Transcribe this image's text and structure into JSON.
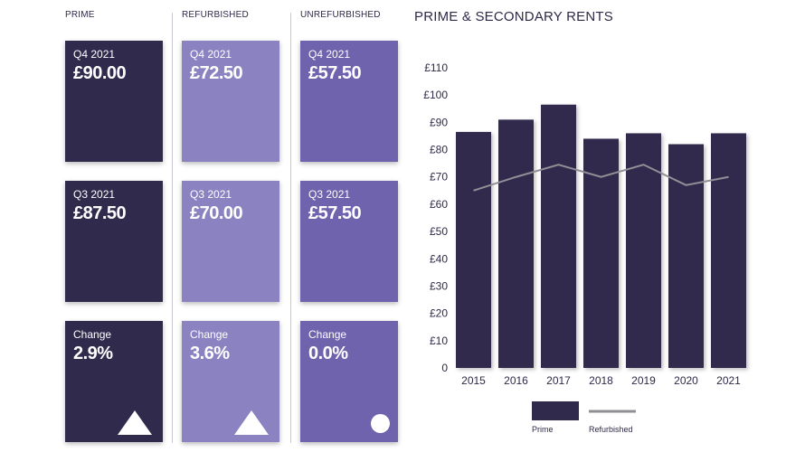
{
  "columns": {
    "prime": {
      "heading": "PRIME",
      "cards": [
        {
          "label": "Q4 2021",
          "value": "£90.00"
        },
        {
          "label": "Q3 2021",
          "value": "£87.50"
        },
        {
          "label": "Change",
          "value": "2.9%",
          "indicator": "up-triangle-icon"
        }
      ]
    },
    "refurbished": {
      "heading": "REFURBISHED",
      "cards": [
        {
          "label": "Q4 2021",
          "value": "£72.50"
        },
        {
          "label": "Q3 2021",
          "value": "£70.00"
        },
        {
          "label": "Change",
          "value": "3.6%",
          "indicator": "up-triangle-icon"
        }
      ]
    },
    "unrefurbished": {
      "heading": "UNREFURBISHED",
      "cards": [
        {
          "label": "Q4 2021",
          "value": "£57.50"
        },
        {
          "label": "Q3 2021",
          "value": "£57.50"
        },
        {
          "label": "Change",
          "value": "0.0%",
          "indicator": "circle-icon"
        }
      ]
    }
  },
  "colors": {
    "prime": "#302a4d",
    "refurbished": "#8a82c1",
    "unrefurbished": "#6f63ad",
    "line": "#8f8f95"
  },
  "chart_data": {
    "type": "bar",
    "title": "PRIME & SECONDARY RENTS",
    "categories": [
      "2015",
      "2016",
      "2017",
      "2018",
      "2019",
      "2020",
      "2021"
    ],
    "series": [
      {
        "name": "Prime",
        "kind": "bar",
        "values": [
          86.5,
          91,
          96.5,
          84,
          86,
          82,
          86
        ]
      },
      {
        "name": "Refurbished",
        "kind": "line",
        "values": [
          65,
          70,
          74.5,
          70,
          74.5,
          67,
          70
        ]
      }
    ],
    "y_ticks": [
      "0",
      "£10",
      "£20",
      "£30",
      "£40",
      "£50",
      "£60",
      "£70",
      "£80",
      "£90",
      "£100",
      "£110"
    ],
    "ylim": [
      0,
      110
    ],
    "grid": false,
    "legend_position": "bottom"
  }
}
